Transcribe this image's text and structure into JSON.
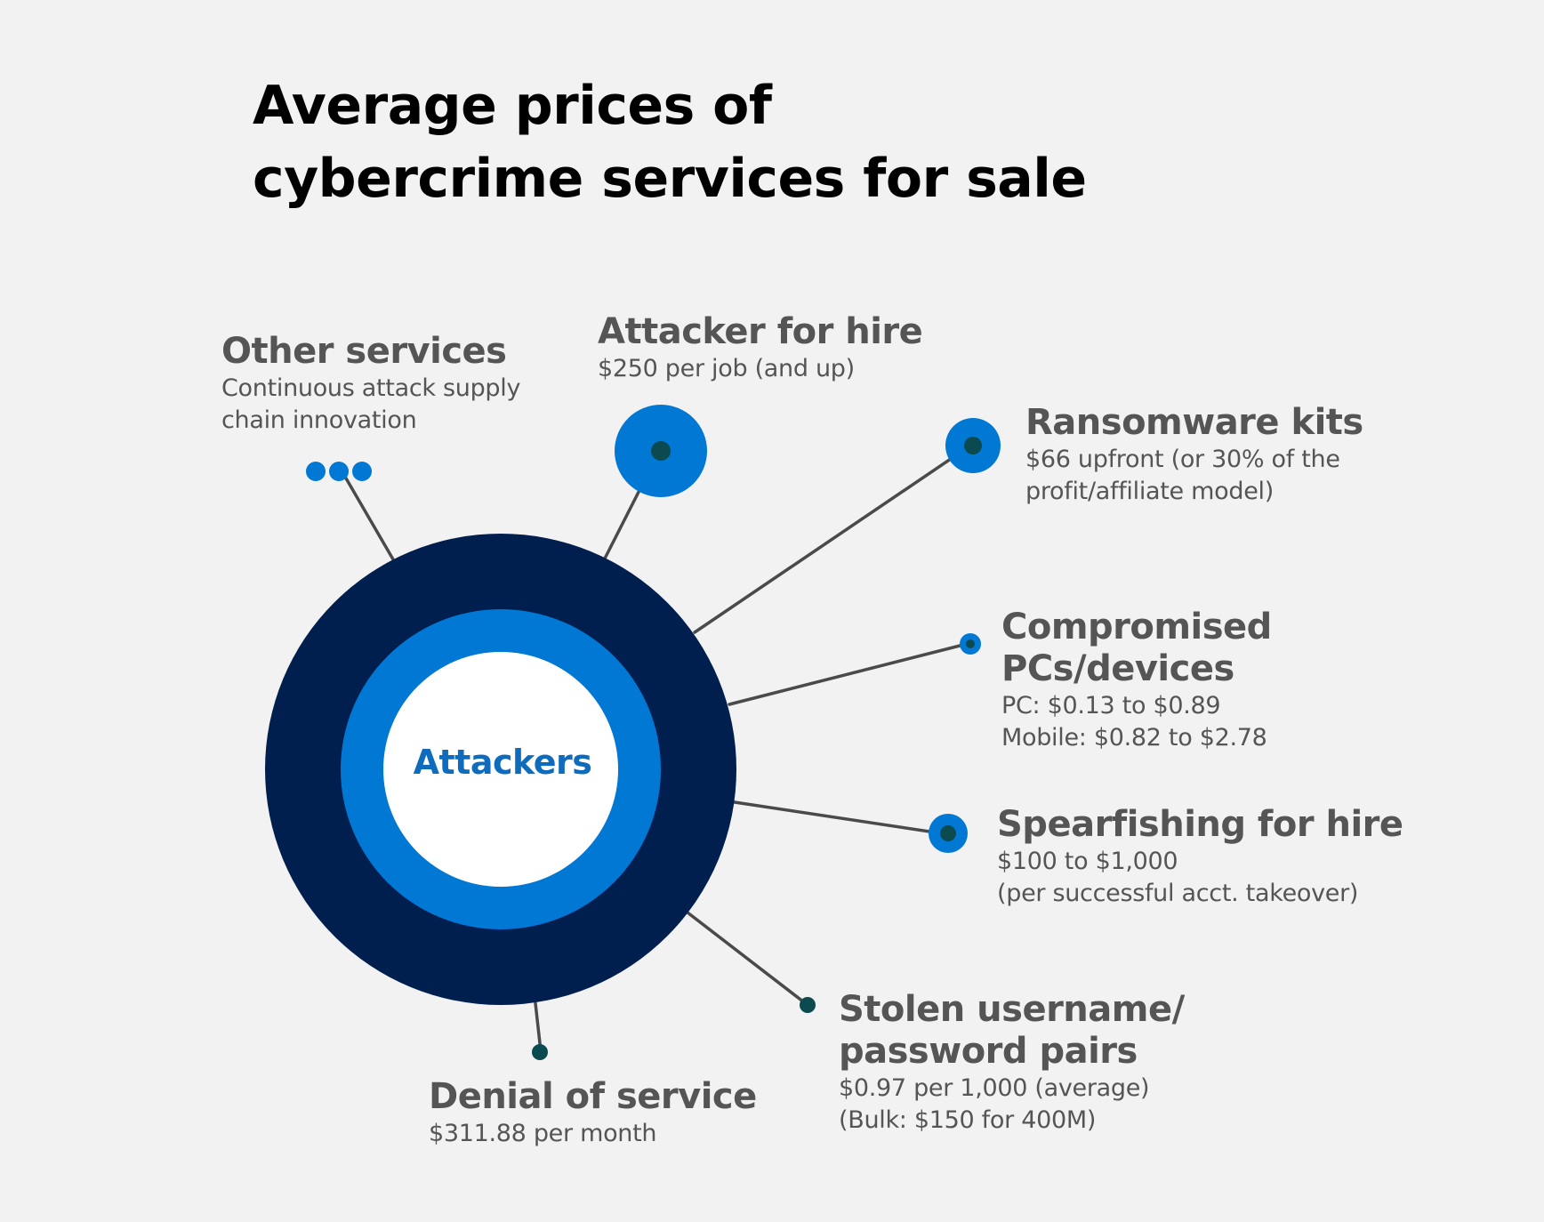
{
  "title": {
    "line1": "Average prices of",
    "line2": "cybercrime services for sale"
  },
  "center": {
    "label": "Attackers"
  },
  "colors": {
    "background": "#f2f2f2",
    "outer_ring": "#001f4e",
    "middle_ring": "#0078d4",
    "inner_circle": "#ffffff",
    "center_text": "#0f6cbd",
    "node_blue": "#0078d4",
    "node_dot": "#0b4a4f",
    "connector": "#4a4a4a",
    "label_text": "#555555"
  },
  "services": [
    {
      "id": "other-services",
      "name": "Other services",
      "details": [
        "Continuous attack supply",
        "chain innovation"
      ],
      "marker": "three-dots-icon"
    },
    {
      "id": "attacker-for-hire",
      "name": "Attacker for hire",
      "details": [
        "$250 per job (and up)"
      ],
      "marker": "large-node-icon"
    },
    {
      "id": "ransomware-kits",
      "name": "Ransomware kits",
      "details": [
        "$66 upfront (or 30% of the",
        "profit/affiliate model)"
      ],
      "marker": "medium-node-icon"
    },
    {
      "id": "compromised-devices",
      "name_lines": [
        "Compromised",
        "PCs/devices"
      ],
      "details": [
        "PC: $0.13 to $0.89",
        "Mobile: $0.82 to $2.78"
      ],
      "marker": "small-node-icon"
    },
    {
      "id": "spearfishing-for-hire",
      "name": "Spearfishing for hire",
      "details": [
        "$100 to $1,000",
        "(per successful acct. takeover)"
      ],
      "marker": "medium-node-icon"
    },
    {
      "id": "stolen-credentials",
      "name_lines": [
        "Stolen username/",
        "password pairs"
      ],
      "details": [
        "$0.97 per 1,000 (average)",
        "(Bulk: $150 for 400M)"
      ],
      "marker": "dot-node-icon"
    },
    {
      "id": "denial-of-service",
      "name": "Denial of service",
      "details": [
        "$311.88 per month"
      ],
      "marker": "dot-node-icon"
    }
  ]
}
